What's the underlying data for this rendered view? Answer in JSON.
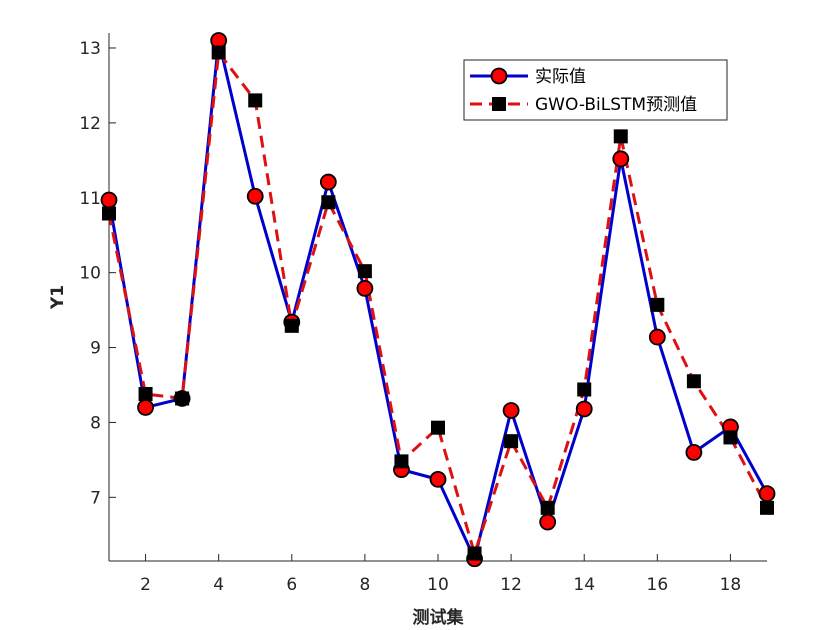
{
  "chart_data": {
    "type": "line",
    "xlabel": "测试集",
    "ylabel": "Y1",
    "xlim": [
      1,
      19
    ],
    "ylim": [
      6.15,
      13.2
    ],
    "xticks": [
      2,
      4,
      6,
      8,
      10,
      12,
      14,
      16,
      18
    ],
    "yticks": [
      7,
      8,
      9,
      10,
      11,
      12,
      13
    ],
    "x": [
      1,
      2,
      3,
      4,
      5,
      6,
      7,
      8,
      9,
      10,
      11,
      12,
      13,
      14,
      15,
      16,
      17,
      18,
      19
    ],
    "legend_position": "top-right",
    "grid": false,
    "series": [
      {
        "name": "实际值",
        "color": "#0000cc",
        "marker_color": "#ff0000",
        "style": "solid",
        "marker": "circle",
        "values": [
          10.97,
          8.2,
          8.32,
          13.1,
          11.02,
          9.34,
          11.21,
          9.79,
          7.37,
          7.24,
          6.18,
          8.16,
          6.67,
          8.18,
          11.52,
          9.14,
          7.6,
          7.94,
          7.05
        ]
      },
      {
        "name": "GWO-BiLSTM预测值",
        "color": "#dd1111",
        "marker_color": "#000000",
        "style": "dashed",
        "marker": "square",
        "values": [
          10.79,
          8.38,
          8.32,
          12.94,
          12.3,
          9.29,
          10.94,
          10.02,
          7.48,
          7.93,
          6.25,
          7.75,
          6.86,
          8.44,
          11.82,
          9.57,
          8.55,
          7.8,
          6.86
        ]
      }
    ]
  }
}
